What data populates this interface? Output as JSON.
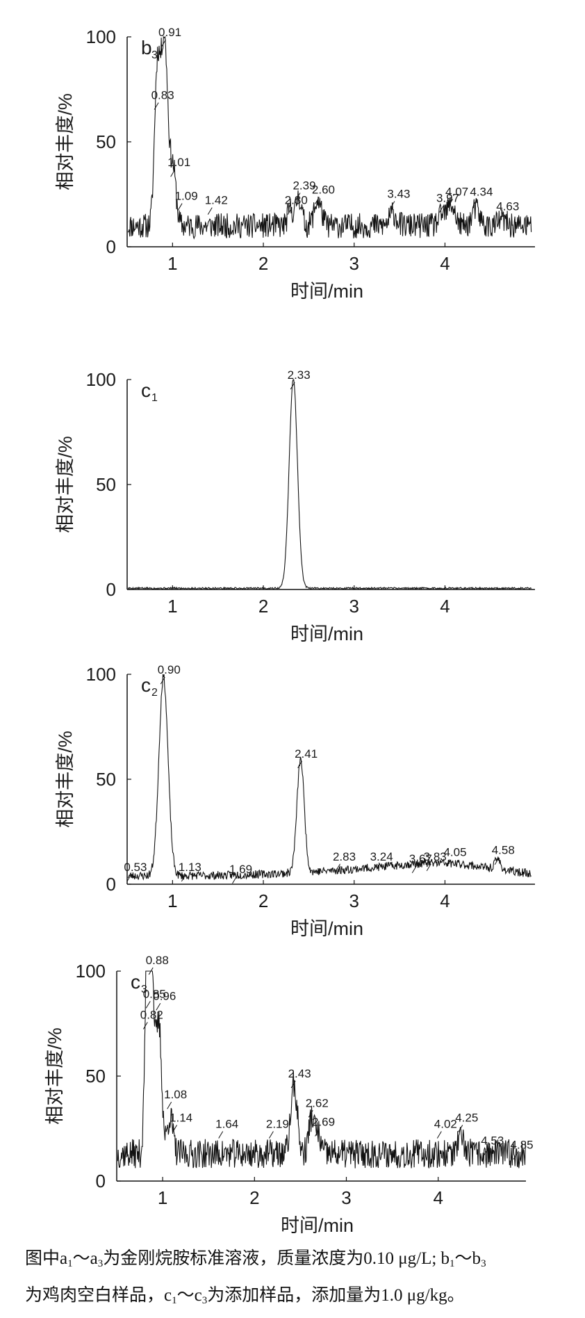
{
  "charts": [
    {
      "type": "line",
      "panel_label": "b",
      "panel_sub": "3",
      "ylabel": "相对丰度/%",
      "xlabel": "时间/min",
      "xlim": [
        0.5,
        4.95
      ],
      "ylim": [
        0,
        100
      ],
      "xticks": [
        1,
        2,
        3,
        4
      ],
      "yticks": [
        0,
        50,
        100
      ],
      "baseline": 10,
      "noise": 6,
      "seed": 11,
      "peaks": [
        {
          "x": 0.83,
          "y": 68,
          "w": 0.03
        },
        {
          "x": 0.91,
          "y": 90,
          "w": 0.04
        },
        {
          "x": 1.01,
          "y": 25,
          "w": 0.03
        },
        {
          "x": 2.3,
          "y": 8,
          "w": 0.03
        },
        {
          "x": 2.39,
          "y": 14,
          "w": 0.03
        },
        {
          "x": 2.6,
          "y": 12,
          "w": 0.04
        },
        {
          "x": 3.43,
          "y": 6,
          "w": 0.04
        },
        {
          "x": 3.97,
          "y": 5,
          "w": 0.04
        },
        {
          "x": 4.07,
          "y": 10,
          "w": 0.04
        },
        {
          "x": 4.34,
          "y": 8,
          "w": 0.04
        },
        {
          "x": 4.63,
          "y": 3,
          "w": 0.04
        }
      ],
      "labels": [
        {
          "text": "0.83",
          "x": 0.83,
          "y": 70
        },
        {
          "text": "0.91",
          "x": 0.91,
          "y": 100
        },
        {
          "text": "1.01",
          "x": 1.01,
          "y": 38
        },
        {
          "text": "1.09",
          "x": 1.09,
          "y": 22
        },
        {
          "text": "1.42",
          "x": 1.42,
          "y": 20
        },
        {
          "text": "2.30",
          "x": 2.3,
          "y": 20
        },
        {
          "text": "2.39",
          "x": 2.39,
          "y": 27
        },
        {
          "text": "2.60",
          "x": 2.6,
          "y": 25
        },
        {
          "text": "3.43",
          "x": 3.43,
          "y": 23
        },
        {
          "text": "3.97",
          "x": 3.97,
          "y": 21
        },
        {
          "text": "4.07",
          "x": 4.07,
          "y": 24
        },
        {
          "text": "4.34",
          "x": 4.34,
          "y": 24
        },
        {
          "text": "4.63",
          "x": 4.63,
          "y": 17
        }
      ]
    },
    {
      "type": "line",
      "panel_label": "c",
      "panel_sub": "1",
      "ylabel": "相对丰度/%",
      "xlabel": "时间/min",
      "xlim": [
        0.5,
        4.95
      ],
      "ylim": [
        0,
        100
      ],
      "xticks": [
        1,
        2,
        3,
        4
      ],
      "yticks": [
        0,
        50,
        100
      ],
      "baseline": 0.6,
      "noise": 0.4,
      "seed": 5,
      "peaks": [
        {
          "x": 2.33,
          "y": 100,
          "w": 0.045
        }
      ],
      "labels": [
        {
          "text": "2.33",
          "x": 2.33,
          "y": 100
        }
      ]
    },
    {
      "type": "line",
      "panel_label": "c",
      "panel_sub": "2",
      "ylabel": "相对丰度/%",
      "xlabel": "时间/min",
      "xlim": [
        0.5,
        4.95
      ],
      "ylim": [
        0,
        100
      ],
      "xticks": [
        1,
        2,
        3,
        4
      ],
      "yticks": [
        0,
        50,
        100
      ],
      "baseline": 4,
      "noise": 2,
      "seed": 23,
      "peaks": [
        {
          "x": 0.9,
          "y": 95,
          "w": 0.05
        },
        {
          "x": 2.41,
          "y": 54,
          "w": 0.04
        },
        {
          "x": 3.3,
          "y": 3,
          "w": 0.8
        },
        {
          "x": 4.05,
          "y": 4,
          "w": 0.5
        },
        {
          "x": 4.58,
          "y": 5,
          "w": 0.03
        }
      ],
      "labels": [
        {
          "text": "0.53",
          "x": 0.53,
          "y": 6
        },
        {
          "text": "0.90",
          "x": 0.9,
          "y": 100
        },
        {
          "text": "1.13",
          "x": 1.13,
          "y": 6
        },
        {
          "text": "1.69",
          "x": 1.69,
          "y": 5
        },
        {
          "text": "2.41",
          "x": 2.41,
          "y": 60
        },
        {
          "text": "2.83",
          "x": 2.83,
          "y": 11
        },
        {
          "text": "3.24",
          "x": 3.24,
          "y": 11
        },
        {
          "text": "3.67",
          "x": 3.67,
          "y": 10
        },
        {
          "text": "3.83",
          "x": 3.83,
          "y": 11
        },
        {
          "text": "4.05",
          "x": 4.05,
          "y": 13
        },
        {
          "text": "4.58",
          "x": 4.58,
          "y": 14
        }
      ]
    },
    {
      "type": "line",
      "panel_label": "c",
      "panel_sub": "3",
      "ylabel": "相对丰度/%",
      "xlabel": "时间/min",
      "xlim": [
        0.5,
        4.95
      ],
      "ylim": [
        0,
        100
      ],
      "xticks": [
        1,
        2,
        3,
        4
      ],
      "yticks": [
        0,
        50,
        100
      ],
      "baseline": 13,
      "noise": 7,
      "seed": 37,
      "peaks": [
        {
          "x": 0.82,
          "y": 60,
          "w": 0.02
        },
        {
          "x": 0.85,
          "y": 65,
          "w": 0.02
        },
        {
          "x": 0.88,
          "y": 82,
          "w": 0.03
        },
        {
          "x": 0.96,
          "y": 60,
          "w": 0.03
        },
        {
          "x": 1.08,
          "y": 18,
          "w": 0.03
        },
        {
          "x": 2.43,
          "y": 33,
          "w": 0.035
        },
        {
          "x": 2.62,
          "y": 17,
          "w": 0.03
        },
        {
          "x": 2.69,
          "y": 9,
          "w": 0.03
        },
        {
          "x": 4.25,
          "y": 6,
          "w": 0.04
        }
      ],
      "labels": [
        {
          "text": "0.82",
          "x": 0.82,
          "y": 77
        },
        {
          "text": "0.85",
          "x": 0.85,
          "y": 87
        },
        {
          "text": "0.88",
          "x": 0.88,
          "y": 103
        },
        {
          "text": "0.96",
          "x": 0.96,
          "y": 86
        },
        {
          "text": "1.08",
          "x": 1.08,
          "y": 39
        },
        {
          "text": "1.14",
          "x": 1.14,
          "y": 28
        },
        {
          "text": "1.64",
          "x": 1.64,
          "y": 25
        },
        {
          "text": "2.19",
          "x": 2.19,
          "y": 25
        },
        {
          "text": "2.43",
          "x": 2.43,
          "y": 49
        },
        {
          "text": "2.62",
          "x": 2.62,
          "y": 35
        },
        {
          "text": "2.69",
          "x": 2.69,
          "y": 26
        },
        {
          "text": "4.02",
          "x": 4.02,
          "y": 25
        },
        {
          "text": "4.25",
          "x": 4.25,
          "y": 28
        },
        {
          "text": "4.53",
          "x": 4.53,
          "y": 17
        },
        {
          "text": "4.85",
          "x": 4.85,
          "y": 15
        }
      ]
    }
  ],
  "caption": {
    "line1_a": "图中a",
    "line1_a_sub1": "1",
    "line1_b": "～a",
    "line1_b_sub": "3",
    "line1_c": "为金刚烷胺标准溶液，质量浓度为0.10 μg/L; b",
    "line1_c_sub": "1",
    "line1_d": "～b",
    "line1_d_sub": "3",
    "line2_a": "为鸡肉空白样品，c",
    "line2_a_sub": "1",
    "line2_b": "～c",
    "line2_b_sub": "3",
    "line2_c": "为添加样品，添加量为1.0 μg/kg。"
  }
}
